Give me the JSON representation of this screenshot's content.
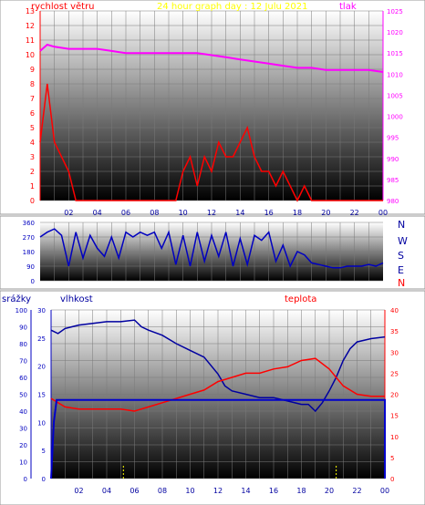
{
  "header": {
    "title": "24 hour graph day : 12 Julu 2021",
    "left_label": "rychlost větru",
    "right_label": "tlak"
  },
  "bottom_header": {
    "rain_label": "srážky",
    "humidity_label": "vlhkost",
    "temp_label": "teplota"
  },
  "direction_labels": [
    "N",
    "W",
    "S",
    "E",
    "N"
  ],
  "colors": {
    "wind": "#ff0000",
    "pressure": "#ff00ff",
    "direction": "#0000c0",
    "humidity": "#0000a0",
    "temperature": "#ff0000",
    "rain": "#0000cc",
    "rain_rate": "#ffff00",
    "left_axis": "#ff0000",
    "right_axis": "#ff00ff",
    "blue_axis": "#0000c0"
  },
  "chart_data": [
    {
      "type": "line",
      "series": [
        {
          "name": "rychlost větru",
          "axis": "left",
          "x": [
            0,
            0.25,
            0.5,
            1,
            1.5,
            2,
            2.5,
            3,
            3.5,
            4,
            4.5,
            5,
            5.5,
            6,
            6.5,
            7,
            7.5,
            8,
            8.5,
            9,
            9.5,
            10,
            10.5,
            11,
            11.5,
            12,
            12.5,
            13,
            13.5,
            14,
            14.5,
            15,
            15.5,
            16,
            16.5,
            17,
            17.5,
            18,
            18.5,
            19,
            19.5,
            20,
            20.5,
            21,
            21.5,
            22,
            22.5,
            23,
            23.5,
            24
          ],
          "values": [
            4,
            6,
            8,
            4,
            3,
            2,
            0,
            0,
            0,
            0,
            0,
            0,
            0,
            0,
            0,
            0,
            0,
            0,
            0,
            0,
            0,
            2,
            3,
            1,
            3,
            2,
            4,
            3,
            3,
            4,
            5,
            3,
            2,
            2,
            1,
            2,
            1,
            0,
            1,
            0,
            0,
            0,
            0,
            0,
            0,
            0,
            0,
            0,
            0,
            0
          ]
        },
        {
          "name": "tlak",
          "axis": "right",
          "x": [
            0,
            0.5,
            1,
            2,
            3,
            4,
            5,
            6,
            7,
            8,
            9,
            10,
            11,
            12,
            13,
            14,
            15,
            16,
            17,
            18,
            19,
            20,
            21,
            22,
            23,
            24
          ],
          "values": [
            1015.5,
            1017,
            1016.5,
            1016,
            1016,
            1016,
            1015.5,
            1015,
            1015,
            1015,
            1015,
            1015,
            1015,
            1014.5,
            1014,
            1013.5,
            1013,
            1012.5,
            1012,
            1011.5,
            1011.5,
            1011,
            1011,
            1011,
            1011,
            1010.5
          ]
        }
      ],
      "ylim_left": [
        0,
        13
      ],
      "ylim_right": [
        980,
        1025
      ],
      "xlim": [
        0,
        24
      ],
      "x_tick_labels": [
        "02",
        "04",
        "06",
        "08",
        "10",
        "12",
        "14",
        "16",
        "18",
        "20",
        "22",
        "00"
      ],
      "y_tick_labels_left": [
        "0",
        "1",
        "2",
        "3",
        "4",
        "5",
        "6",
        "7",
        "8",
        "9",
        "10",
        "11",
        "12",
        "13"
      ],
      "y_tick_labels_right": [
        "980",
        "985",
        "990",
        "995",
        "1000",
        "1005",
        "1010",
        "1015",
        "1020",
        "1025"
      ]
    },
    {
      "type": "line",
      "series": [
        {
          "name": "směr",
          "x": [
            0,
            0.5,
            1,
            1.5,
            2,
            2.5,
            3,
            3.5,
            4,
            4.5,
            5,
            5.5,
            6,
            6.5,
            7,
            7.5,
            8,
            8.5,
            9,
            9.5,
            10,
            10.5,
            11,
            11.5,
            12,
            12.5,
            13,
            13.5,
            14,
            14.5,
            15,
            15.5,
            16,
            16.5,
            17,
            17.5,
            18,
            18.5,
            19,
            19.5,
            20,
            20.5,
            21,
            21.5,
            22,
            22.5,
            23,
            23.5,
            24
          ],
          "values": [
            270,
            300,
            320,
            280,
            90,
            300,
            140,
            280,
            200,
            150,
            270,
            140,
            300,
            270,
            300,
            280,
            300,
            200,
            300,
            100,
            280,
            90,
            300,
            120,
            280,
            150,
            300,
            90,
            260,
            100,
            280,
            250,
            300,
            120,
            220,
            90,
            180,
            160,
            110,
            100,
            90,
            80,
            80,
            90,
            90,
            90,
            100,
            90,
            110
          ]
        }
      ],
      "ylim": [
        0,
        360
      ],
      "xlim": [
        0,
        24
      ],
      "y_tick_labels": [
        "0",
        "90",
        "180",
        "270",
        "360"
      ]
    },
    {
      "type": "line",
      "series": [
        {
          "name": "vlhkost",
          "axis": "left",
          "x": [
            0,
            0.5,
            1,
            1.5,
            2,
            3,
            4,
            5,
            6,
            6.5,
            7,
            8,
            9,
            10,
            11,
            12,
            12.5,
            13,
            14,
            15,
            16,
            17,
            18,
            18.5,
            19,
            19.5,
            20,
            20.5,
            21,
            21.5,
            22,
            23,
            24
          ],
          "values": [
            88,
            86,
            89,
            90,
            91,
            92,
            93,
            93,
            94,
            90,
            88,
            85,
            80,
            76,
            72,
            62,
            55,
            52,
            50,
            48,
            48,
            46,
            44,
            44,
            40,
            45,
            52,
            60,
            70,
            77,
            81,
            83,
            84
          ]
        },
        {
          "name": "teplota",
          "axis": "right",
          "x": [
            0,
            1,
            2,
            3,
            4,
            5,
            6,
            7,
            8,
            9,
            10,
            11,
            12,
            13,
            14,
            15,
            16,
            17,
            18,
            19,
            20,
            21,
            22,
            23,
            24
          ],
          "values": [
            19,
            17,
            16.5,
            16.5,
            16.5,
            16.5,
            16,
            17,
            18,
            19,
            20,
            21,
            23,
            24,
            25,
            25,
            26,
            26.5,
            28,
            28.5,
            26,
            22,
            20,
            19.5,
            19.5
          ]
        },
        {
          "name": "srážky",
          "axis": "rain",
          "x": [
            0,
            0.2,
            0.4,
            24
          ],
          "values": [
            0,
            10,
            14,
            14
          ]
        }
      ],
      "ylim_humidity": [
        0,
        100
      ],
      "ylim_temperature": [
        0,
        40
      ],
      "ylim_rain": [
        0,
        30
      ],
      "xlim": [
        0,
        24
      ],
      "y_tick_labels_rain": [
        "0",
        "5",
        "10",
        "15",
        "20",
        "25",
        "30"
      ],
      "y_tick_labels_humidity": [
        "0",
        "10",
        "20",
        "30",
        "40",
        "50",
        "60",
        "70",
        "80",
        "90",
        "100"
      ],
      "y_tick_labels_temp": [
        "0",
        "5",
        "10",
        "15",
        "20",
        "25",
        "30",
        "35",
        "40"
      ]
    }
  ]
}
